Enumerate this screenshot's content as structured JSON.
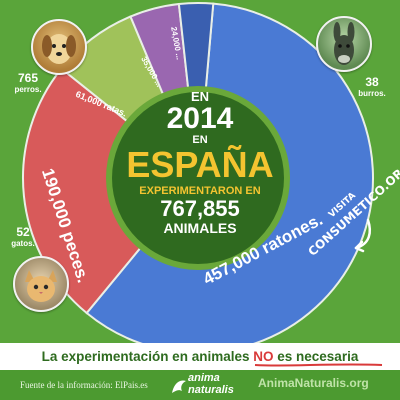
{
  "headline": {
    "line1": "EN",
    "year": "2014",
    "line3": "EN",
    "country": "ESPAÑA",
    "line5": "EXPERIMENTARON EN",
    "total": "767,855",
    "line7": "ANIMALES"
  },
  "chart_data": {
    "type": "pie",
    "title": "",
    "total": 767855,
    "slices": [
      {
        "label": "ratones",
        "value": 457000,
        "text": "457,000 ratones.",
        "color": "#4a7ad4"
      },
      {
        "label": "peces",
        "value": 190000,
        "text": "190,000 peces.",
        "color": "#d85a5a"
      },
      {
        "label": "ratas",
        "value": 61000,
        "text": "61,000 ratas.",
        "color": "#a0c25a"
      },
      {
        "label": "?",
        "value": 35000,
        "text": "35,000 ...",
        "color": "#9a67b0"
      },
      {
        "label": "?",
        "value": 24000,
        "text": "24,000 ...",
        "color": "#3a5fb0"
      }
    ],
    "outside_labels": [
      {
        "label": "perros",
        "value": 765,
        "text_num": "765",
        "text_name": "perros."
      },
      {
        "label": "burros",
        "value": 38,
        "text_num": "38",
        "text_name": "burros."
      },
      {
        "label": "gatos",
        "value": 52,
        "text_num": "52",
        "text_name": "gatos."
      }
    ]
  },
  "visit": {
    "line1": "VISITA",
    "line2": "CONSUMETICO.ORG"
  },
  "banner": {
    "part1": "La experimentación en animales",
    "highlight": "NO",
    "part2": "es necesaria"
  },
  "footer": {
    "source": "Fuente de la información: ElPais.es",
    "brand_line1": "anima",
    "brand_line2": "naturalis",
    "site": "AnimaNaturalis.org"
  },
  "colors": {
    "background": "#5aa53a",
    "center": "#2f6a1f",
    "center_ring": "#6aa83a",
    "year_text": "#ffffff",
    "country_text": "#f4c430"
  }
}
